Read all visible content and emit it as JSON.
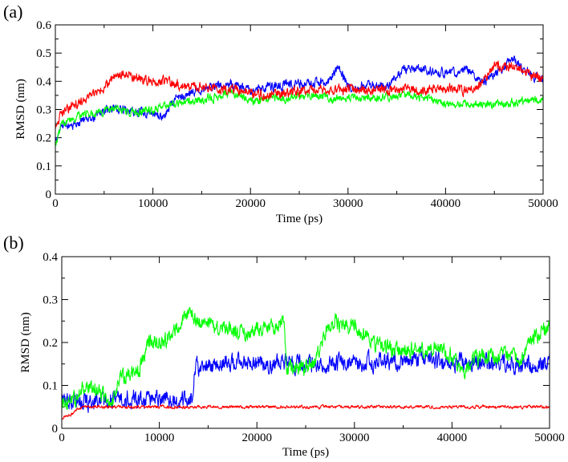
{
  "chart_data": [
    {
      "type": "line",
      "panel_label": "(a)",
      "xlabel": "Time (ps)",
      "ylabel": "RMSD (nm)",
      "xlim": [
        0,
        50000
      ],
      "ylim": [
        0,
        0.6
      ],
      "x_ticks": [
        0,
        10000,
        20000,
        30000,
        40000,
        50000
      ],
      "x_tick_labels": [
        "0",
        "10000",
        "20000",
        "30000",
        "40000",
        "50000"
      ],
      "y_ticks": [
        0,
        0.1,
        0.2,
        0.3,
        0.4,
        0.5,
        0.6
      ],
      "y_tick_labels": [
        "0",
        "0.1",
        "0.2",
        "0.3",
        "0.4",
        "0.5",
        "0.6"
      ],
      "grid": false,
      "legend": "none",
      "series": [
        {
          "color": "#0000ff",
          "noise": 0.018,
          "points": [
            [
              0,
              0.2
            ],
            [
              500,
              0.24
            ],
            [
              2000,
              0.25
            ],
            [
              4000,
              0.27
            ],
            [
              6000,
              0.31
            ],
            [
              8000,
              0.29
            ],
            [
              10000,
              0.29
            ],
            [
              11000,
              0.27
            ],
            [
              12000,
              0.33
            ],
            [
              14000,
              0.36
            ],
            [
              16000,
              0.38
            ],
            [
              18000,
              0.39
            ],
            [
              20000,
              0.37
            ],
            [
              22000,
              0.38
            ],
            [
              24000,
              0.39
            ],
            [
              26000,
              0.39
            ],
            [
              28000,
              0.4
            ],
            [
              29000,
              0.45
            ],
            [
              30000,
              0.38
            ],
            [
              32000,
              0.39
            ],
            [
              34000,
              0.38
            ],
            [
              36000,
              0.45
            ],
            [
              38000,
              0.44
            ],
            [
              40000,
              0.43
            ],
            [
              42000,
              0.44
            ],
            [
              44000,
              0.4
            ],
            [
              46000,
              0.45
            ],
            [
              47000,
              0.48
            ],
            [
              48000,
              0.44
            ],
            [
              50000,
              0.4
            ]
          ]
        },
        {
          "color": "#00ff00",
          "noise": 0.016,
          "points": [
            [
              0,
              0.16
            ],
            [
              500,
              0.24
            ],
            [
              2000,
              0.27
            ],
            [
              4000,
              0.29
            ],
            [
              6000,
              0.3
            ],
            [
              8000,
              0.29
            ],
            [
              10000,
              0.3
            ],
            [
              12000,
              0.32
            ],
            [
              14000,
              0.33
            ],
            [
              16000,
              0.34
            ],
            [
              18000,
              0.36
            ],
            [
              20000,
              0.33
            ],
            [
              22000,
              0.34
            ],
            [
              24000,
              0.34
            ],
            [
              26000,
              0.35
            ],
            [
              28000,
              0.34
            ],
            [
              30000,
              0.34
            ],
            [
              32000,
              0.34
            ],
            [
              34000,
              0.34
            ],
            [
              36000,
              0.35
            ],
            [
              38000,
              0.34
            ],
            [
              40000,
              0.32
            ],
            [
              42000,
              0.32
            ],
            [
              44000,
              0.32
            ],
            [
              46000,
              0.32
            ],
            [
              48000,
              0.33
            ],
            [
              50000,
              0.33
            ]
          ]
        },
        {
          "color": "#ff0000",
          "noise": 0.02,
          "points": [
            [
              0,
              0.22
            ],
            [
              500,
              0.28
            ],
            [
              2000,
              0.32
            ],
            [
              4000,
              0.35
            ],
            [
              6000,
              0.41
            ],
            [
              7000,
              0.43
            ],
            [
              8000,
              0.41
            ],
            [
              10000,
              0.4
            ],
            [
              12000,
              0.39
            ],
            [
              14000,
              0.38
            ],
            [
              16000,
              0.38
            ],
            [
              18000,
              0.37
            ],
            [
              20000,
              0.36
            ],
            [
              22000,
              0.35
            ],
            [
              24000,
              0.36
            ],
            [
              26000,
              0.37
            ],
            [
              28000,
              0.37
            ],
            [
              30000,
              0.37
            ],
            [
              32000,
              0.37
            ],
            [
              34000,
              0.37
            ],
            [
              36000,
              0.37
            ],
            [
              38000,
              0.37
            ],
            [
              40000,
              0.38
            ],
            [
              42000,
              0.37
            ],
            [
              44000,
              0.4
            ],
            [
              45000,
              0.45
            ],
            [
              47000,
              0.46
            ],
            [
              48000,
              0.43
            ],
            [
              50000,
              0.41
            ]
          ]
        }
      ]
    },
    {
      "type": "line",
      "panel_label": "(b)",
      "xlabel": "Time (ps)",
      "ylabel": "RMSD (nm)",
      "xlim": [
        0,
        50000
      ],
      "ylim": [
        0,
        0.4
      ],
      "x_ticks": [
        0,
        10000,
        20000,
        30000,
        40000,
        50000
      ],
      "x_tick_labels": [
        "0",
        "10000",
        "20000",
        "30000",
        "40000",
        "50000"
      ],
      "y_ticks": [
        0,
        0.1,
        0.2,
        0.3,
        0.4
      ],
      "y_tick_labels": [
        "0",
        "0.1",
        "0.2",
        "0.3",
        "0.4"
      ],
      "grid": false,
      "legend": "none",
      "series": [
        {
          "color": "#0000ff",
          "noise": 0.022,
          "points": [
            [
              0,
              0.07
            ],
            [
              1000,
              0.06
            ],
            [
              3000,
              0.065
            ],
            [
              6000,
              0.07
            ],
            [
              10000,
              0.07
            ],
            [
              13400,
              0.07
            ],
            [
              13600,
              0.14
            ],
            [
              16000,
              0.15
            ],
            [
              20000,
              0.15
            ],
            [
              23000,
              0.15
            ],
            [
              26000,
              0.15
            ],
            [
              30000,
              0.15
            ],
            [
              34000,
              0.16
            ],
            [
              38000,
              0.16
            ],
            [
              42000,
              0.15
            ],
            [
              46000,
              0.15
            ],
            [
              50000,
              0.15
            ]
          ]
        },
        {
          "color": "#00ff00",
          "noise": 0.02,
          "points": [
            [
              0,
              0.05
            ],
            [
              1000,
              0.06
            ],
            [
              2000,
              0.09
            ],
            [
              3000,
              0.1
            ],
            [
              4000,
              0.08
            ],
            [
              5000,
              0.06
            ],
            [
              6000,
              0.12
            ],
            [
              8000,
              0.14
            ],
            [
              9000,
              0.2
            ],
            [
              10000,
              0.2
            ],
            [
              11000,
              0.21
            ],
            [
              12000,
              0.24
            ],
            [
              13000,
              0.27
            ],
            [
              14000,
              0.25
            ],
            [
              16000,
              0.24
            ],
            [
              18000,
              0.22
            ],
            [
              20000,
              0.23
            ],
            [
              22000,
              0.24
            ],
            [
              22800,
              0.26
            ],
            [
              23000,
              0.14
            ],
            [
              25000,
              0.14
            ],
            [
              26000,
              0.16
            ],
            [
              27000,
              0.22
            ],
            [
              28000,
              0.25
            ],
            [
              29000,
              0.24
            ],
            [
              30000,
              0.24
            ],
            [
              32000,
              0.2
            ],
            [
              34000,
              0.18
            ],
            [
              36000,
              0.18
            ],
            [
              38000,
              0.19
            ],
            [
              40000,
              0.17
            ],
            [
              41000,
              0.12
            ],
            [
              42000,
              0.16
            ],
            [
              44000,
              0.17
            ],
            [
              46000,
              0.17
            ],
            [
              47000,
              0.15
            ],
            [
              48000,
              0.21
            ],
            [
              49000,
              0.22
            ],
            [
              50000,
              0.24
            ]
          ]
        },
        {
          "color": "#ff0000",
          "noise": 0.004,
          "points": [
            [
              0,
              0.025
            ],
            [
              800,
              0.03
            ],
            [
              1600,
              0.045
            ],
            [
              2500,
              0.05
            ],
            [
              5000,
              0.05
            ],
            [
              10000,
              0.05
            ],
            [
              15000,
              0.05
            ],
            [
              20000,
              0.05
            ],
            [
              25000,
              0.05
            ],
            [
              30000,
              0.05
            ],
            [
              35000,
              0.05
            ],
            [
              40000,
              0.05
            ],
            [
              45000,
              0.05
            ],
            [
              50000,
              0.05
            ]
          ]
        }
      ]
    }
  ]
}
